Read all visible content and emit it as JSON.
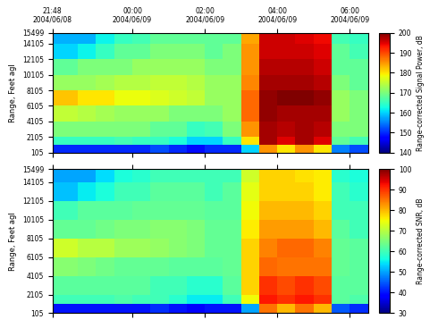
{
  "chart_data": [
    {
      "type": "heatmap",
      "ylabel": "Range, Feet agl",
      "xlim": [
        21.8,
        30.5
      ],
      "xticks": [
        {
          "value": 21.8,
          "label": "21:48\n2004/06/08"
        },
        {
          "value": 24,
          "label": "00:00\n2004/06/09"
        },
        {
          "value": 26,
          "label": "02:00\n2004/06/09"
        },
        {
          "value": 28,
          "label": "04:00\n2004/06/09"
        },
        {
          "value": 30,
          "label": "06:00\n2004/06/09"
        }
      ],
      "ylim": [
        105,
        15499
      ],
      "yticks": [
        105,
        2105,
        4105,
        6105,
        8105,
        10105,
        12105,
        14105,
        15499
      ],
      "tick_labels": true,
      "x_edges": [
        21.8,
        22.5,
        23,
        23.5,
        24,
        24.5,
        25,
        25.5,
        26,
        26.5,
        27,
        27.5,
        28,
        28.5,
        29,
        29.5,
        30,
        30.5
      ],
      "y_edges": [
        105,
        1100,
        2105,
        4105,
        6105,
        8105,
        10105,
        12105,
        14105,
        15499
      ],
      "cells": [
        [
          150,
          150,
          150,
          150,
          150,
          152,
          150,
          148,
          150,
          150,
          160,
          185,
          180,
          185,
          180,
          155,
          152
        ],
        [
          165,
          165,
          165,
          166,
          165,
          165,
          163,
          160,
          160,
          165,
          180,
          198,
          195,
          198,
          195,
          168,
          166
        ],
        [
          170,
          170,
          170,
          170,
          170,
          168,
          168,
          165,
          166,
          170,
          185,
          198,
          197,
          198,
          197,
          170,
          170
        ],
        [
          175,
          174,
          173,
          172,
          172,
          172,
          170,
          170,
          170,
          172,
          188,
          199,
          198,
          198,
          198,
          172,
          170
        ],
        [
          182,
          180,
          180,
          178,
          178,
          177,
          176,
          175,
          172,
          172,
          188,
          199,
          200,
          200,
          199,
          172,
          170
        ],
        [
          172,
          172,
          173,
          174,
          174,
          175,
          175,
          174,
          172,
          172,
          186,
          198,
          198,
          198,
          197,
          170,
          168
        ],
        [
          168,
          170,
          170,
          170,
          172,
          172,
          172,
          172,
          170,
          170,
          185,
          197,
          197,
          197,
          196,
          168,
          168
        ],
        [
          160,
          162,
          165,
          168,
          168,
          170,
          170,
          170,
          168,
          170,
          185,
          196,
          196,
          196,
          195,
          168,
          166
        ],
        [
          158,
          158,
          162,
          165,
          166,
          168,
          168,
          168,
          168,
          168,
          184,
          196,
          196,
          195,
          194,
          166,
          165
        ]
      ],
      "colorbar": {
        "label": "Range-corrected Signal Power, dB",
        "range": [
          140,
          200
        ],
        "ticks": [
          140,
          150,
          160,
          170,
          180,
          190,
          200
        ]
      }
    },
    {
      "type": "heatmap",
      "ylabel": "Range, Feet agl",
      "xlim": [
        21.8,
        30.5
      ],
      "xticks": [
        21.8,
        24,
        26,
        28,
        30
      ],
      "ylim": [
        105,
        15499
      ],
      "yticks": [
        105,
        2105,
        4105,
        6105,
        8105,
        10105,
        12105,
        14105,
        15499
      ],
      "tick_labels": "y",
      "x_edges": [
        21.8,
        22.5,
        23,
        23.5,
        24,
        24.5,
        25,
        25.5,
        26,
        26.5,
        27,
        27.5,
        28,
        28.5,
        29,
        29.5,
        30,
        30.5
      ],
      "y_edges": [
        105,
        1100,
        2105,
        4105,
        6105,
        8105,
        10105,
        12105,
        14105,
        15499
      ],
      "cells": [
        [
          40,
          40,
          40,
          40,
          40,
          42,
          40,
          38,
          40,
          40,
          50,
          85,
          80,
          85,
          80,
          45,
          42
        ],
        [
          60,
          60,
          60,
          61,
          60,
          60,
          58,
          55,
          55,
          60,
          75,
          92,
          90,
          92,
          90,
          62,
          61
        ],
        [
          62,
          62,
          62,
          62,
          62,
          60,
          60,
          58,
          58,
          62,
          78,
          90,
          88,
          90,
          88,
          62,
          62
        ],
        [
          66,
          65,
          64,
          63,
          63,
          63,
          62,
          62,
          62,
          63,
          78,
          86,
          85,
          85,
          85,
          63,
          62
        ],
        [
          72,
          70,
          70,
          68,
          68,
          67,
          66,
          65,
          63,
          63,
          78,
          84,
          86,
          86,
          84,
          63,
          62
        ],
        [
          63,
          63,
          64,
          65,
          65,
          66,
          66,
          65,
          63,
          63,
          76,
          82,
          82,
          82,
          80,
          62,
          60
        ],
        [
          60,
          62,
          62,
          62,
          63,
          63,
          63,
          63,
          62,
          62,
          75,
          80,
          80,
          80,
          78,
          60,
          60
        ],
        [
          52,
          55,
          57,
          60,
          60,
          62,
          62,
          62,
          60,
          62,
          74,
          78,
          78,
          78,
          76,
          60,
          58
        ],
        [
          50,
          50,
          54,
          57,
          58,
          60,
          60,
          60,
          60,
          60,
          72,
          78,
          78,
          77,
          76,
          58,
          57
        ]
      ],
      "colorbar": {
        "label": "Range-corrected SNR, dB",
        "range": [
          30,
          100
        ],
        "ticks": [
          30,
          40,
          50,
          60,
          70,
          80,
          90,
          100
        ]
      }
    }
  ]
}
